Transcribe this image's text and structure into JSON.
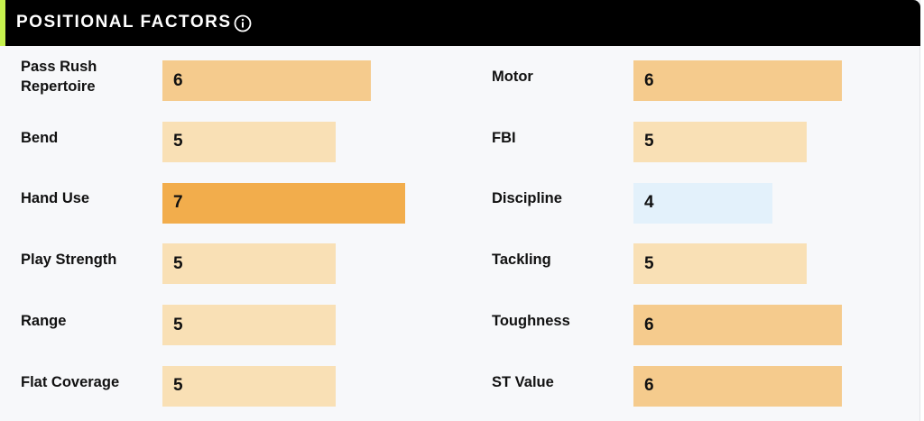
{
  "header": {
    "title": "POSITIONAL FACTORS",
    "info_icon": "info-circle-icon",
    "accent_color": "#c6f24e"
  },
  "factors": {
    "left": [
      {
        "label": "Pass Rush Repertoire",
        "value": "6"
      },
      {
        "label": "Bend",
        "value": "5"
      },
      {
        "label": "Hand Use",
        "value": "7"
      },
      {
        "label": "Play Strength",
        "value": "5"
      },
      {
        "label": "Range",
        "value": "5"
      },
      {
        "label": "Flat Coverage",
        "value": "5"
      }
    ],
    "right": [
      {
        "label": "Motor",
        "value": "6"
      },
      {
        "label": "FBI",
        "value": "5"
      },
      {
        "label": "Discipline",
        "value": "4"
      },
      {
        "label": "Tackling",
        "value": "5"
      },
      {
        "label": "Toughness",
        "value": "6"
      },
      {
        "label": "ST Value",
        "value": "6"
      }
    ]
  },
  "colors": {
    "rating_4": "#e3f1fb",
    "rating_5": "#f9e0b5",
    "rating_6": "#f5cb8d",
    "rating_7": "#f2ad4c"
  }
}
